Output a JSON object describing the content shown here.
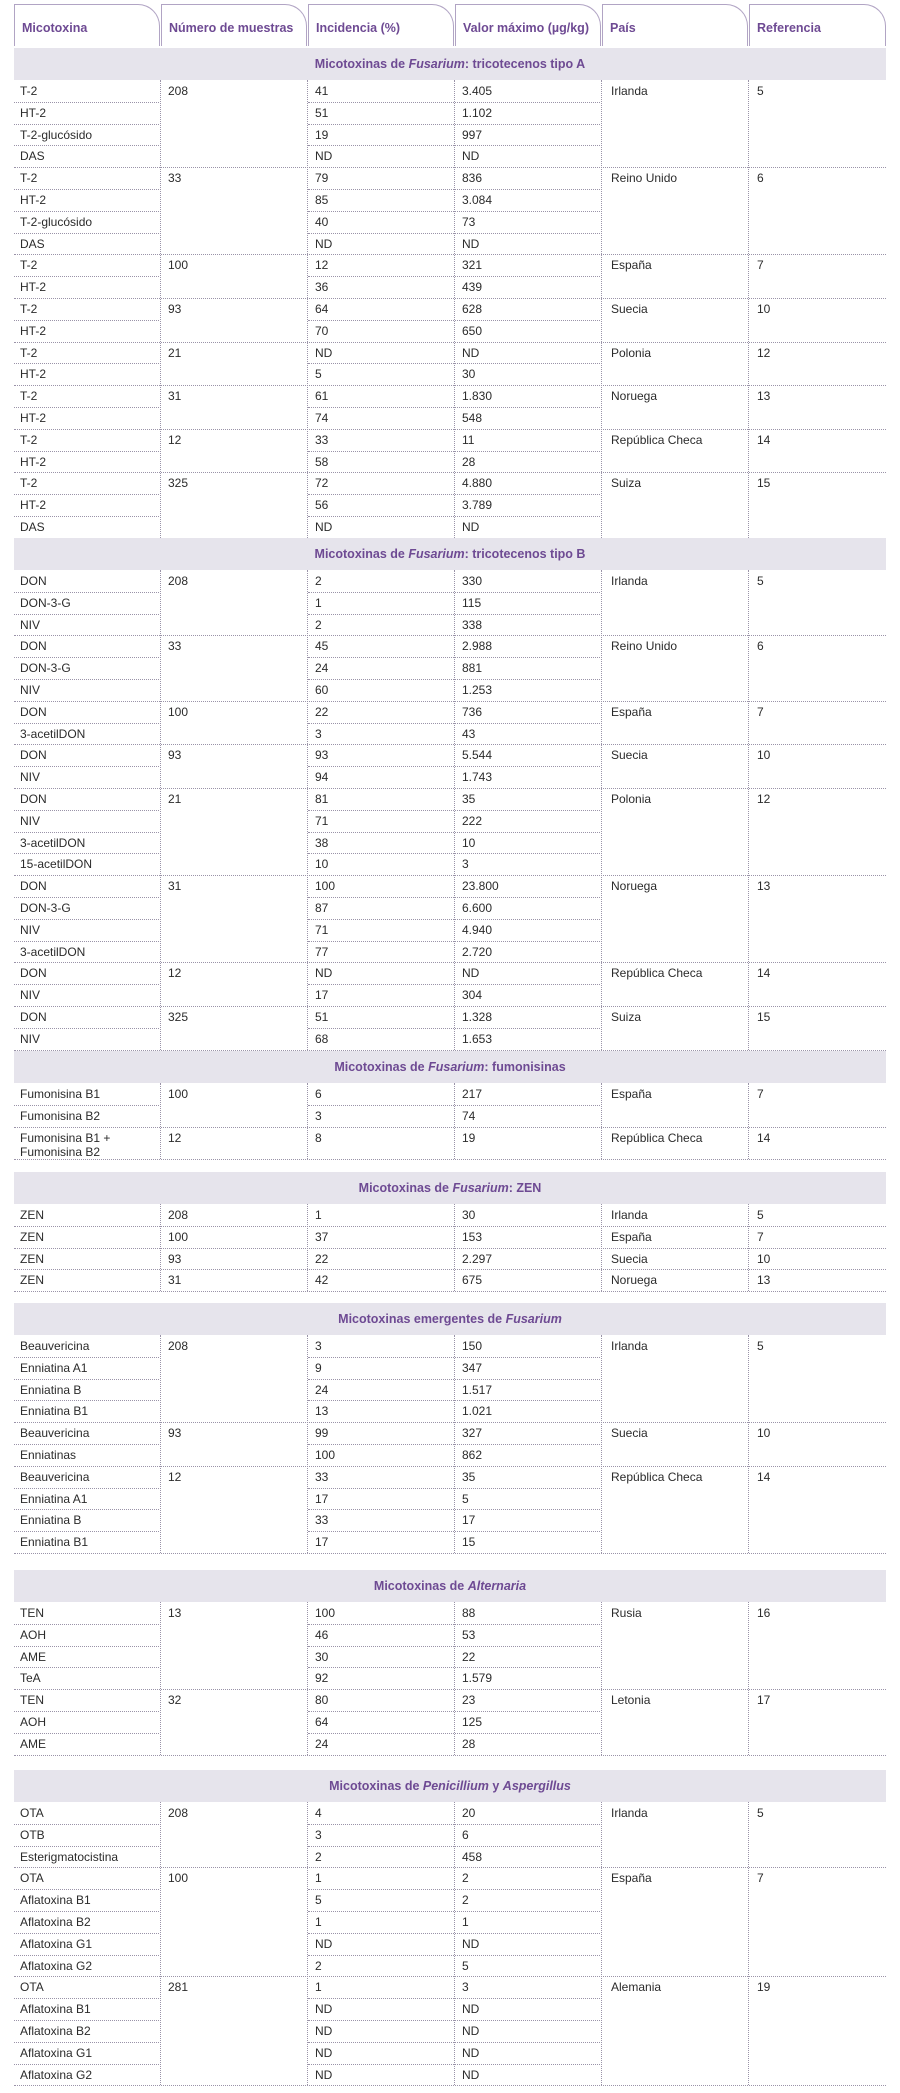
{
  "headers": [
    "Micotoxina",
    "Número de muestras",
    "Incidencia (%)",
    "Valor máximo (µg/kg)",
    "País",
    "Referencia"
  ],
  "sections": [
    {
      "title_pre": "Micotoxinas de ",
      "title_italic": "Fusarium",
      "title_post": ": tricotecenos tipo A",
      "groups": [
        {
          "n": "208",
          "country": "Irlanda",
          "ref": "5",
          "rows": [
            [
              "T-2",
              "41",
              "3.405"
            ],
            [
              "HT-2",
              "51",
              "1.102"
            ],
            [
              "T-2-glucósido",
              "19",
              "997"
            ],
            [
              "DAS",
              "ND",
              "ND"
            ]
          ]
        },
        {
          "n": "33",
          "country": "Reino Unido",
          "ref": "6",
          "rows": [
            [
              "T-2",
              "79",
              "836"
            ],
            [
              "HT-2",
              "85",
              "3.084"
            ],
            [
              "T-2-glucósido",
              "40",
              "73"
            ],
            [
              "DAS",
              "ND",
              "ND"
            ]
          ]
        },
        {
          "n": "100",
          "country": "España",
          "ref": "7",
          "rows": [
            [
              "T-2",
              "12",
              "321"
            ],
            [
              "HT-2",
              "36",
              "439"
            ]
          ]
        },
        {
          "n": "93",
          "country": "Suecia",
          "ref": "10",
          "rows": [
            [
              "T-2",
              "64",
              "628"
            ],
            [
              "HT-2",
              "70",
              "650"
            ]
          ]
        },
        {
          "n": "21",
          "country": "Polonia",
          "ref": "12",
          "rows": [
            [
              "T-2",
              "ND",
              "ND"
            ],
            [
              "HT-2",
              "5",
              "30"
            ]
          ]
        },
        {
          "n": "31",
          "country": "Noruega",
          "ref": "13",
          "rows": [
            [
              "T-2",
              "61",
              "1.830"
            ],
            [
              "HT-2",
              "74",
              "548"
            ]
          ]
        },
        {
          "n": "12",
          "country": "República Checa",
          "ref": "14",
          "rows": [
            [
              "T-2",
              "33",
              "11"
            ],
            [
              "HT-2",
              "58",
              "28"
            ]
          ]
        },
        {
          "n": "325",
          "country": "Suiza",
          "ref": "15",
          "rows": [
            [
              "T-2",
              "72",
              "4.880"
            ],
            [
              "HT-2",
              "56",
              "3.789"
            ],
            [
              "DAS",
              "ND",
              "ND"
            ]
          ]
        }
      ]
    },
    {
      "title_pre": "Micotoxinas de ",
      "title_italic": "Fusarium",
      "title_post": ": tricotecenos tipo B",
      "groups": [
        {
          "n": "208",
          "country": "Irlanda",
          "ref": "5",
          "rows": [
            [
              "DON",
              "2",
              "330"
            ],
            [
              "DON-3-G",
              "1",
              "115"
            ],
            [
              "NIV",
              "2",
              "338"
            ]
          ]
        },
        {
          "n": "33",
          "country": "Reino Unido",
          "ref": "6",
          "rows": [
            [
              "DON",
              "45",
              "2.988"
            ],
            [
              "DON-3-G",
              "24",
              "881"
            ],
            [
              "NIV",
              "60",
              "1.253"
            ]
          ]
        },
        {
          "n": "100",
          "country": "España",
          "ref": "7",
          "rows": [
            [
              "DON",
              "22",
              "736"
            ],
            [
              "3-acetilDON",
              "3",
              "43"
            ]
          ]
        },
        {
          "n": "93",
          "country": "Suecia",
          "ref": "10",
          "rows": [
            [
              "DON",
              "93",
              "5.544"
            ],
            [
              "NIV",
              "94",
              "1.743"
            ]
          ]
        },
        {
          "n": "21",
          "country": "Polonia",
          "ref": "12",
          "rows": [
            [
              "DON",
              "81",
              "35"
            ],
            [
              "NIV",
              "71",
              "222"
            ],
            [
              "3-acetilDON",
              "38",
              "10"
            ],
            [
              "15-acetilDON",
              "10",
              "3"
            ]
          ]
        },
        {
          "n": "31",
          "country": "Noruega",
          "ref": "13",
          "rows": [
            [
              "DON",
              "100",
              "23.800"
            ],
            [
              "DON-3-G",
              "87",
              "6.600"
            ],
            [
              "NIV",
              "71",
              "4.940"
            ],
            [
              "3-acetilDON",
              "77",
              "2.720"
            ]
          ]
        },
        {
          "n": "12",
          "country": "República Checa",
          "ref": "14",
          "rows": [
            [
              "DON",
              "ND",
              "ND"
            ],
            [
              "NIV",
              "17",
              "304"
            ]
          ]
        },
        {
          "n": "325",
          "country": "Suiza",
          "ref": "15",
          "rows": [
            [
              "DON",
              "51",
              "1.328"
            ],
            [
              "NIV",
              "68",
              "1.653"
            ]
          ]
        }
      ]
    },
    {
      "title_pre": "Micotoxinas de ",
      "title_italic": "Fusarium",
      "title_post": ": fumonisinas",
      "groups": [
        {
          "n": "100",
          "country": "España",
          "ref": "7",
          "rows": [
            [
              "Fumonisina B1",
              "6",
              "217"
            ],
            [
              "Fumonisina B2",
              "3",
              "74"
            ]
          ]
        },
        {
          "n": "12",
          "country": "República Checa",
          "ref": "14",
          "rows": [
            [
              "Fumonisina B1 + Fumonisina B2",
              "8",
              "19"
            ]
          ]
        }
      ]
    },
    {
      "title_pre": "Micotoxinas de ",
      "title_italic": "Fusarium",
      "title_post": ": ZEN",
      "groups": [
        {
          "n": "208",
          "country": "Irlanda",
          "ref": "5",
          "rows": [
            [
              "ZEN",
              "1",
              "30"
            ]
          ]
        },
        {
          "n": "100",
          "country": "España",
          "ref": "7",
          "rows": [
            [
              "ZEN",
              "37",
              "153"
            ]
          ]
        },
        {
          "n": "93",
          "country": "Suecia",
          "ref": "10",
          "rows": [
            [
              "ZEN",
              "22",
              "2.297"
            ]
          ]
        },
        {
          "n": "31",
          "country": "Noruega",
          "ref": "13",
          "rows": [
            [
              "ZEN",
              "42",
              "675"
            ]
          ]
        }
      ]
    },
    {
      "title_pre": "Micotoxinas emergentes de ",
      "title_italic": "Fusarium",
      "title_post": "",
      "groups": [
        {
          "n": "208",
          "country": "Irlanda",
          "ref": "5",
          "rows": [
            [
              "Beauvericina",
              "3",
              "150"
            ],
            [
              "Enniatina A1",
              "9",
              "347"
            ],
            [
              "Enniatina B",
              "24",
              "1.517"
            ],
            [
              "Enniatina B1",
              "13",
              "1.021"
            ]
          ]
        },
        {
          "n": "93",
          "country": "Suecia",
          "ref": "10",
          "rows": [
            [
              "Beauvericina",
              "99",
              "327"
            ],
            [
              "Enniatinas",
              "100",
              "862"
            ]
          ]
        },
        {
          "n": "12",
          "country": "República Checa",
          "ref": "14",
          "rows": [
            [
              "Beauvericina",
              "33",
              "35"
            ],
            [
              "Enniatina A1",
              "17",
              "5"
            ],
            [
              "Enniatina B",
              "33",
              "17"
            ],
            [
              "Enniatina B1",
              "17",
              "15"
            ]
          ]
        }
      ]
    },
    {
      "title_pre": "Micotoxinas de ",
      "title_italic": "Alternaria",
      "title_post": "",
      "groups": [
        {
          "n": "13",
          "country": "Rusia",
          "ref": "16",
          "rows": [
            [
              "TEN",
              "100",
              "88"
            ],
            [
              "AOH",
              "46",
              "53"
            ],
            [
              "AME",
              "30",
              "22"
            ],
            [
              "TeA",
              "92",
              "1.579"
            ]
          ]
        },
        {
          "n": "32",
          "country": "Letonia",
          "ref": "17",
          "rows": [
            [
              "TEN",
              "80",
              "23"
            ],
            [
              "AOH",
              "64",
              "125"
            ],
            [
              "AME",
              "24",
              "28"
            ]
          ]
        }
      ]
    },
    {
      "title_pre": "Micotoxinas de ",
      "title_italic": "Penicillium",
      "title_mid": " y ",
      "title_italic2": "Aspergillus",
      "title_post": "",
      "groups": [
        {
          "n": "208",
          "country": "Irlanda",
          "ref": "5",
          "rows": [
            [
              "OTA",
              "4",
              "20"
            ],
            [
              "OTB",
              "3",
              "6"
            ],
            [
              "Esterigmatocistina",
              "2",
              "458"
            ]
          ]
        },
        {
          "n": "100",
          "country": "España",
          "ref": "7",
          "rows": [
            [
              "OTA",
              "1",
              "2"
            ],
            [
              "Aflatoxina B1",
              "5",
              "2"
            ],
            [
              "Aflatoxina B2",
              "1",
              "1"
            ],
            [
              "Aflatoxina G1",
              "ND",
              "ND"
            ],
            [
              "Aflatoxina G2",
              "2",
              "5"
            ]
          ]
        },
        {
          "n": "281",
          "country": "Alemania",
          "ref": "19",
          "rows": [
            [
              "OTA",
              "1",
              "3"
            ],
            [
              "Aflatoxina B1",
              "ND",
              "ND"
            ],
            [
              "Aflatoxina B2",
              "ND",
              "ND"
            ],
            [
              "Aflatoxina G1",
              "ND",
              "ND"
            ],
            [
              "Aflatoxina G2",
              "ND",
              "ND"
            ]
          ]
        }
      ]
    }
  ]
}
